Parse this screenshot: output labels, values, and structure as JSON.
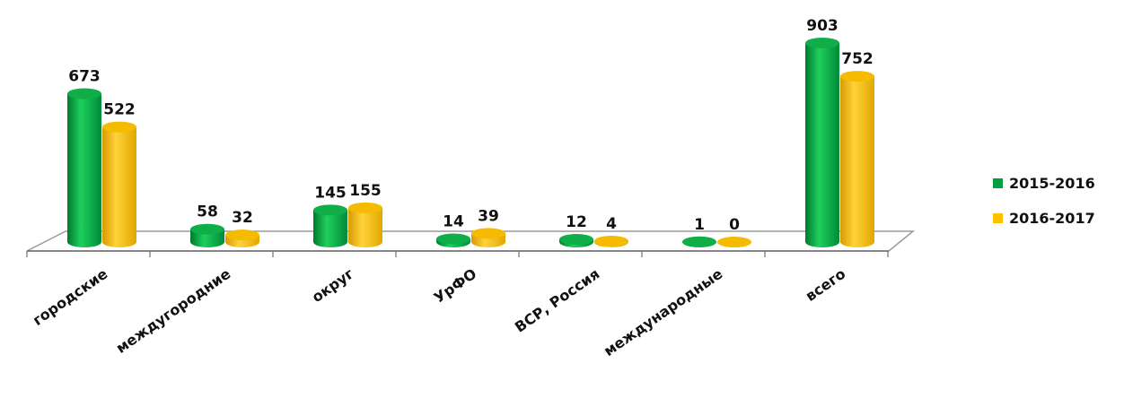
{
  "chart_data": {
    "type": "bar",
    "categories": [
      "городские",
      "междугородние",
      "округ",
      "УрФО",
      "ВСР, Россия",
      "международные",
      "всего"
    ],
    "series": [
      {
        "name": "2015-2016",
        "values": [
          673,
          58,
          145,
          14,
          12,
          1,
          903
        ],
        "color": "#00A040"
      },
      {
        "name": "2016-2017",
        "values": [
          522,
          32,
          155,
          39,
          4,
          0,
          752
        ],
        "color": "#FFC000"
      }
    ],
    "ylim": [
      0,
      903
    ],
    "grid": false,
    "legend_position": "right",
    "title": "",
    "xlabel": "",
    "ylabel": ""
  }
}
